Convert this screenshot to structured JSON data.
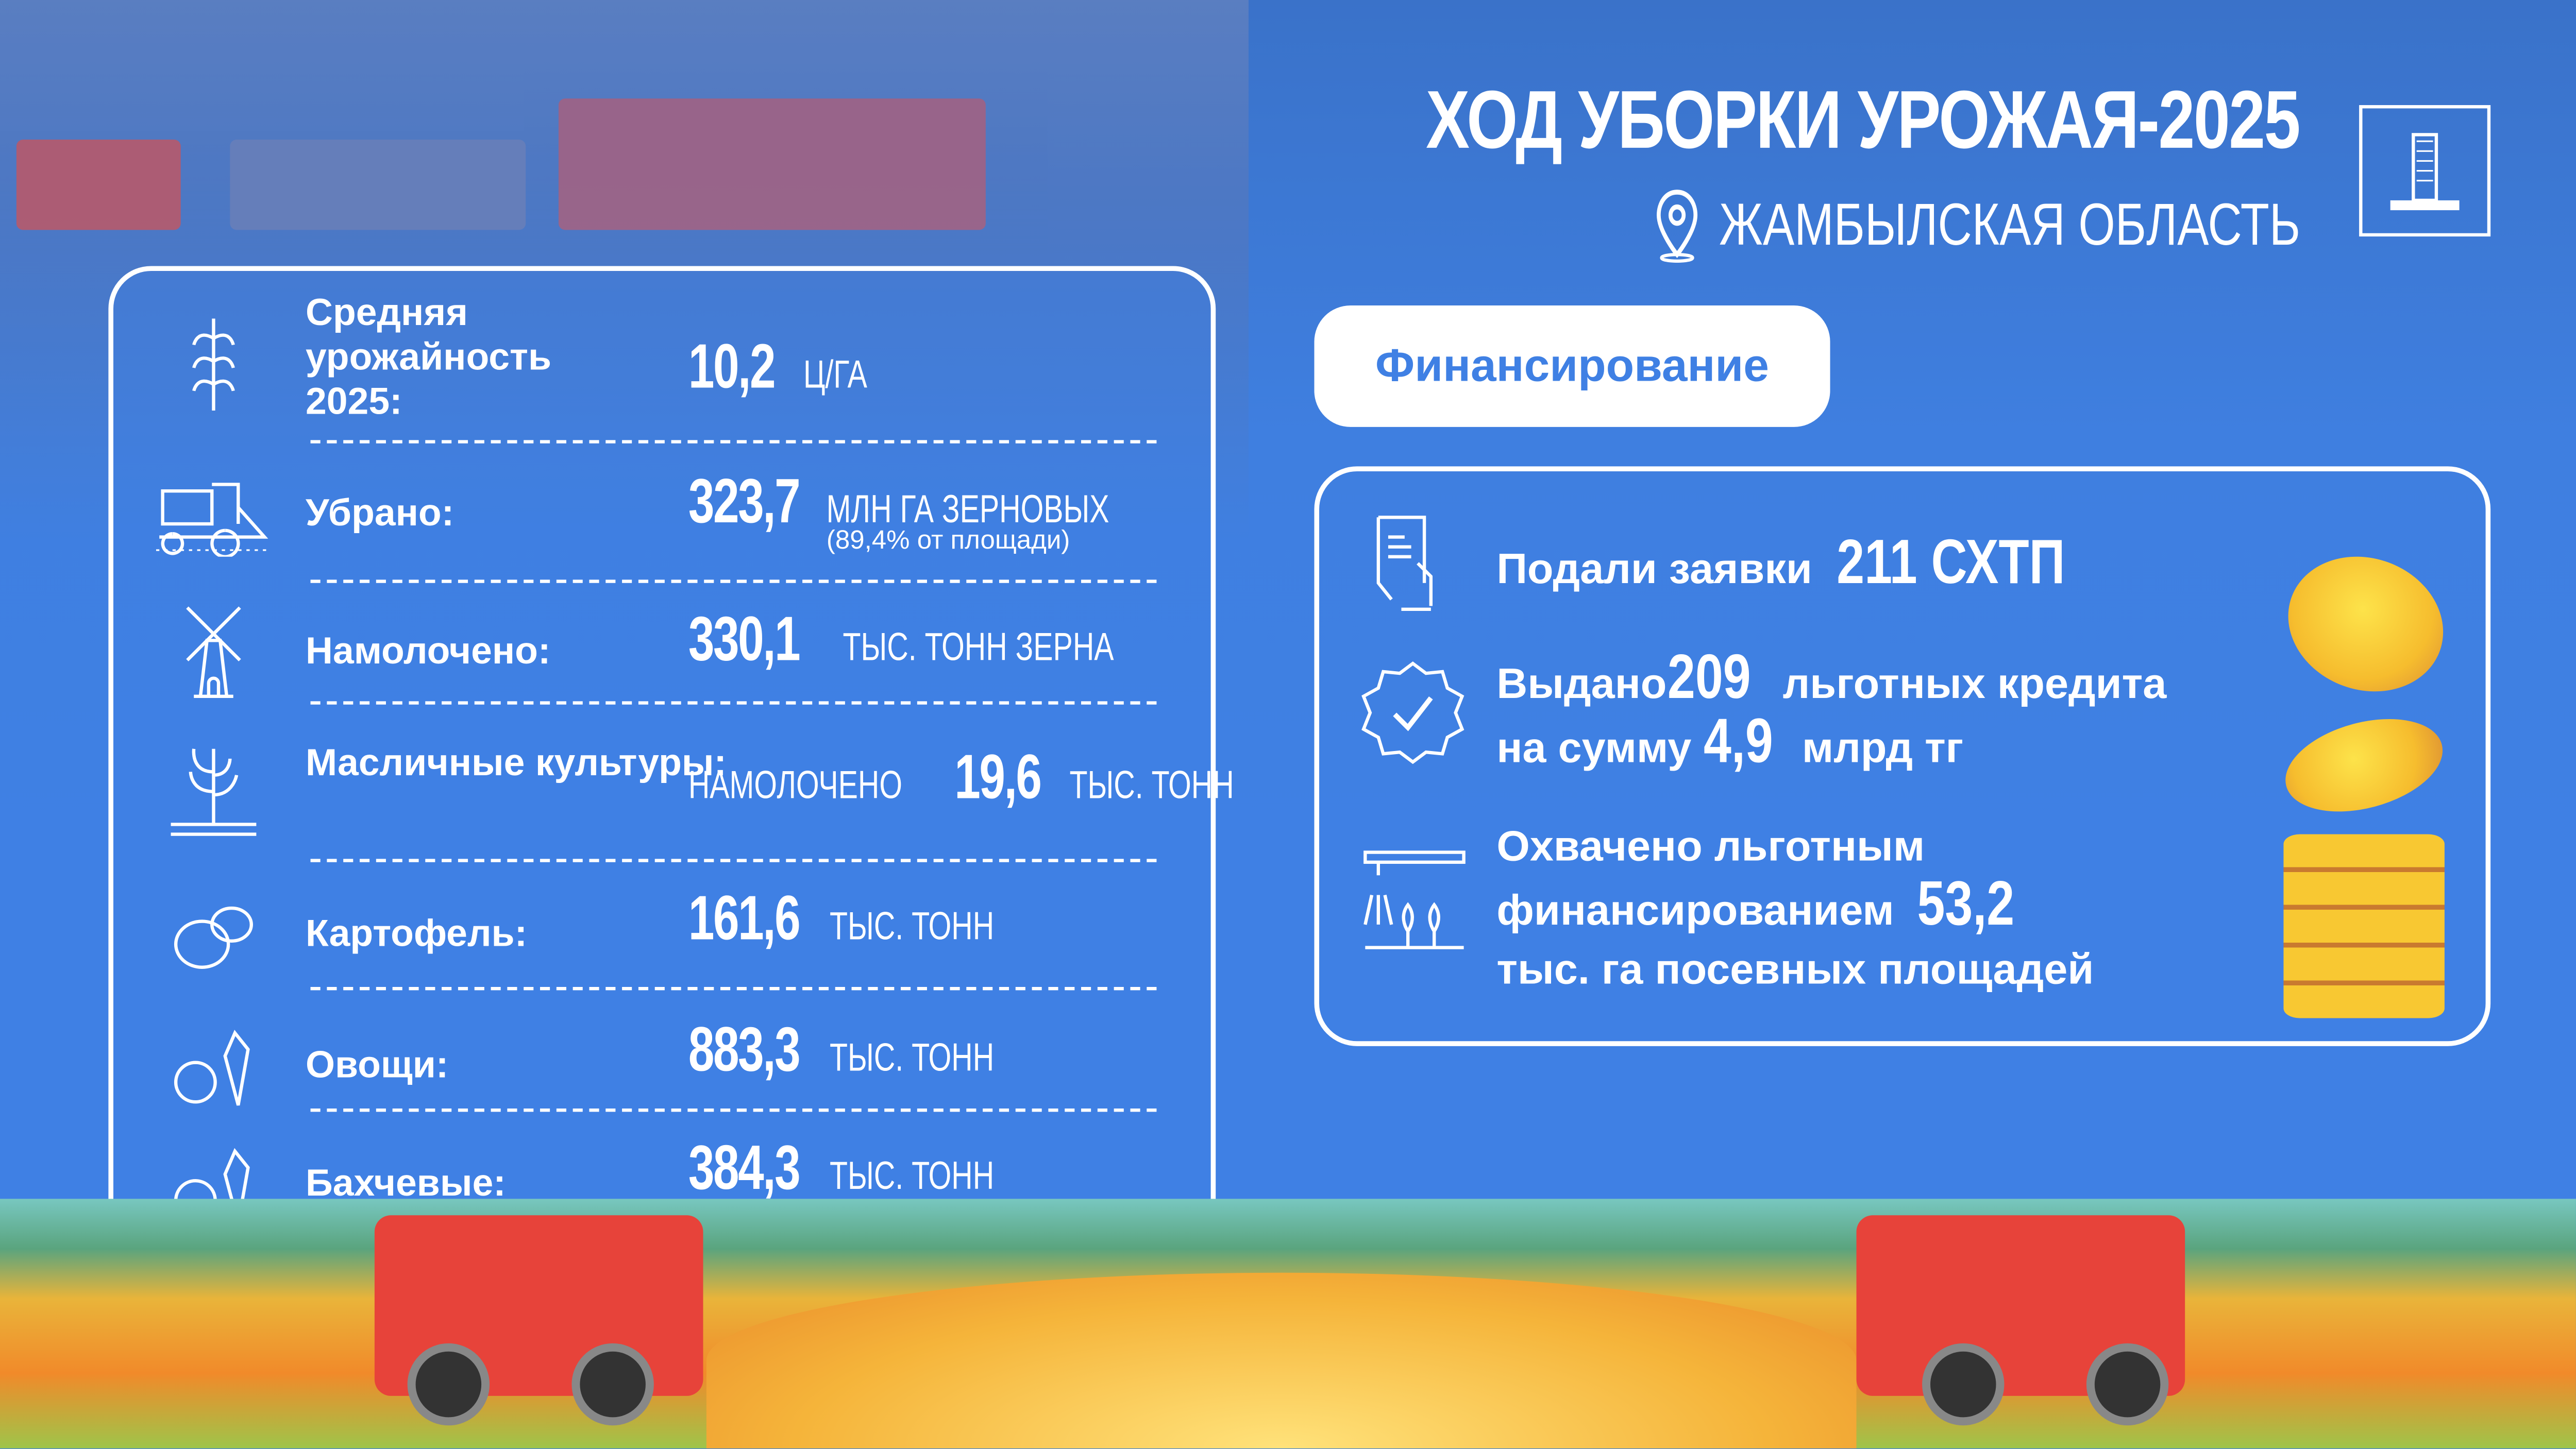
{
  "header": {
    "title": "ХОД УБОРКИ УРОЖАЯ-2025",
    "region": "ЖАМБЫЛСКАЯ ОБЛАСТЬ",
    "location_icon": "map-pin-icon",
    "emblem_icon": "building-emblem-icon"
  },
  "stats": [
    {
      "icon": "wheat-icon",
      "label": "Средняя урожайность 2025:",
      "prefix": "",
      "value": "10,2",
      "unit": "Ц/ГА",
      "note": ""
    },
    {
      "icon": "combine-harvester-icon",
      "label": "Убрано:",
      "prefix": "",
      "value": "323,7",
      "unit": "МЛН ГА ЗЕРНОВЫХ",
      "note": "(89,4% от площади)"
    },
    {
      "icon": "windmill-icon",
      "label": "Намолочено:",
      "prefix": "",
      "value": "330,1",
      "unit": "ТЫС. ТОНН ЗЕРНА",
      "note": ""
    },
    {
      "icon": "plant-icon",
      "label": "Масличные культуры:",
      "prefix": "НАМОЛОЧЕНО",
      "value": "19,6",
      "unit": "ТЫС. ТОНН",
      "note": ""
    },
    {
      "icon": "potato-icon",
      "label": "Картофель:",
      "prefix": "",
      "value": "161,6",
      "unit": "ТЫС. ТОНН",
      "note": ""
    },
    {
      "icon": "vegetables-icon",
      "label": "Овощи:",
      "prefix": "",
      "value": "883,3",
      "unit": "ТЫС. ТОНН",
      "note": ""
    },
    {
      "icon": "melons-icon",
      "label": "Бахчевые:",
      "prefix": "",
      "value": "384,3",
      "unit": "ТЫС. ТОНН",
      "note": ""
    }
  ],
  "financing": {
    "button": "Финансирование",
    "items": [
      {
        "icon": "application-document-icon",
        "text1": "Подали заявки",
        "value": "211 СХТП"
      },
      {
        "icon": "approved-badge-icon",
        "text1": "Выдано",
        "value": "209",
        "text2": "льготных кредита",
        "text3": "на сумму",
        "value2": "4,9",
        "text4": "млрд тг"
      },
      {
        "icon": "irrigation-icon",
        "text1": "Охвачено льготным",
        "text2": "финансированием",
        "value": "53,2",
        "text3": "тыс. га посевных площадей"
      }
    ]
  },
  "colors": {
    "background": "#3f80e4",
    "accent": "#ffffff",
    "coin": "#f6bd2e"
  }
}
